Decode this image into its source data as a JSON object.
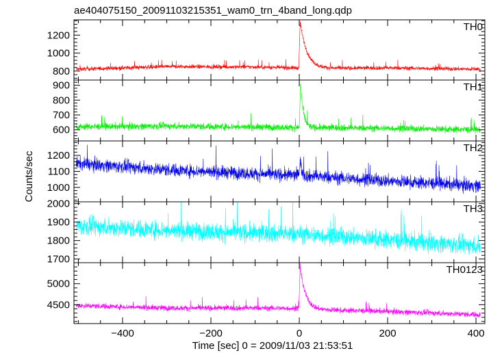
{
  "chart_data": {
    "type": "line",
    "title": "ae404075150_20091103215351_wam0_trn_4band_long.qdp",
    "xlabel": "Time [sec] 0 = 2009/11/03 21:53:51",
    "ylabel": "Counts/sec",
    "xlim": [
      -510,
      420
    ],
    "x_ticks": [
      -400,
      -200,
      0,
      200,
      400
    ],
    "x_tick_labels": [
      "−400",
      "−200",
      "0",
      "200",
      "400"
    ],
    "grid": false,
    "panels": [
      {
        "name": "TH0",
        "color": "#ff0000",
        "ylim": [
          700,
          1370
        ],
        "y_ticks": [
          800,
          1000,
          1200
        ],
        "baseline": [
          [
            -505,
            820
          ],
          [
            -300,
            850
          ],
          [
            -100,
            845
          ],
          [
            -5,
            835
          ],
          [
            40,
            830
          ],
          [
            200,
            835
          ],
          [
            410,
            820
          ]
        ],
        "noise_amplitude": 45,
        "spike": {
          "peak_x": 2,
          "peak_y": 1350,
          "decay_sec": 15
        }
      },
      {
        "name": "TH1",
        "color": "#00ee00",
        "ylim": [
          525,
          935
        ],
        "y_ticks": [
          600,
          700,
          800,
          900
        ],
        "baseline": [
          [
            -505,
            620
          ],
          [
            -300,
            625
          ],
          [
            0,
            615
          ],
          [
            200,
            610
          ],
          [
            410,
            600
          ]
        ],
        "noise_amplitude": 45,
        "spike": {
          "peak_x": 3,
          "peak_y": 920,
          "decay_sec": 6
        }
      },
      {
        "name": "TH2",
        "color": "#0000ee",
        "ylim": [
          910,
          1290
        ],
        "y_ticks": [
          1000,
          1100,
          1200
        ],
        "baseline": [
          [
            -505,
            1150
          ],
          [
            -300,
            1110
          ],
          [
            -100,
            1085
          ],
          [
            0,
            1075
          ],
          [
            200,
            1040
          ],
          [
            410,
            1010
          ]
        ],
        "noise_amplitude": 80,
        "spike": {
          "peak_x": 2,
          "peak_y": 1180,
          "decay_sec": 3
        }
      },
      {
        "name": "TH3",
        "color": "#00ffff",
        "ylim": [
          1680,
          2010
        ],
        "y_ticks": [
          1700,
          1800,
          1900,
          2000
        ],
        "baseline": [
          [
            -505,
            1880
          ],
          [
            -300,
            1855
          ],
          [
            -100,
            1840
          ],
          [
            0,
            1835
          ],
          [
            200,
            1805
          ],
          [
            410,
            1770
          ]
        ],
        "noise_amplitude": 95,
        "spike": null
      },
      {
        "name": "TH0123",
        "color": "#ff00ff",
        "ylim": [
          4050,
          5500
        ],
        "y_ticks": [
          4500,
          5000
        ],
        "baseline": [
          [
            -505,
            4480
          ],
          [
            -300,
            4420
          ],
          [
            -100,
            4420
          ],
          [
            0,
            4410
          ],
          [
            40,
            4380
          ],
          [
            200,
            4340
          ],
          [
            410,
            4260
          ]
        ],
        "noise_amplitude": 130,
        "spike": {
          "peak_x": 2,
          "peak_y": 5400,
          "decay_sec": 12
        }
      }
    ]
  }
}
